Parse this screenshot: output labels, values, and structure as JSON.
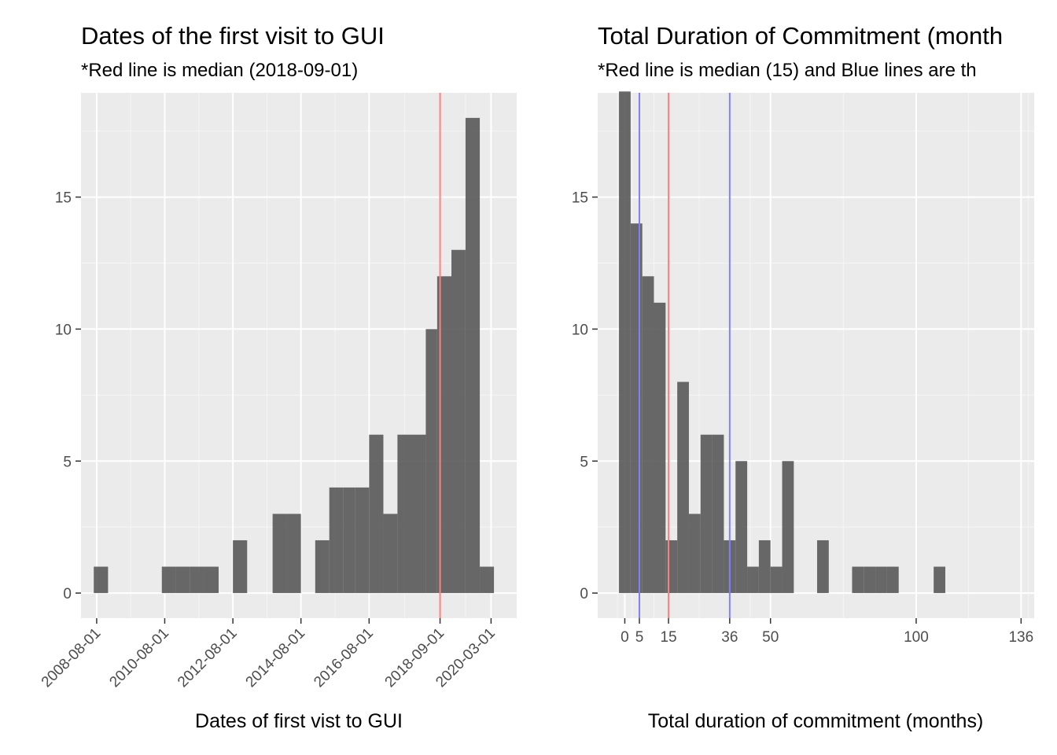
{
  "chart_data": [
    {
      "type": "bar",
      "title": "Dates of the first visit to GUI",
      "subtitle": "*Red line is median (2018-09-01)",
      "xlabel": "Dates of first vist to GUI",
      "ylabel": "",
      "x_tick_labels": [
        "2008-08-01",
        "2010-08-01",
        "2012-08-01",
        "2014-08-01",
        "2016-08-01",
        "2018-09-01",
        "2020-03-01"
      ],
      "y_ticks": [
        0,
        5,
        10,
        15
      ],
      "ylim": [
        0,
        19
      ],
      "grid": true,
      "bins": [
        {
          "start": "2008-07-01",
          "end": "2008-12-01",
          "count": 1
        },
        {
          "start": "2008-12-01",
          "end": "2009-05-01",
          "count": 0
        },
        {
          "start": "2009-05-01",
          "end": "2009-10-01",
          "count": 0
        },
        {
          "start": "2009-10-01",
          "end": "2010-03-01",
          "count": 0
        },
        {
          "start": "2010-03-01",
          "end": "2010-07-01",
          "count": 0
        },
        {
          "start": "2010-07-01",
          "end": "2010-12-01",
          "count": 1
        },
        {
          "start": "2010-12-01",
          "end": "2011-05-01",
          "count": 1
        },
        {
          "start": "2011-05-01",
          "end": "2011-10-01",
          "count": 1
        },
        {
          "start": "2011-10-01",
          "end": "2012-03-01",
          "count": 1
        },
        {
          "start": "2012-03-01",
          "end": "2012-08-01",
          "count": 0
        },
        {
          "start": "2012-08-01",
          "end": "2013-01-01",
          "count": 2
        },
        {
          "start": "2013-01-01",
          "end": "2013-06-01",
          "count": 0
        },
        {
          "start": "2013-06-01",
          "end": "2013-10-01",
          "count": 0
        },
        {
          "start": "2013-10-01",
          "end": "2014-03-01",
          "count": 3
        },
        {
          "start": "2014-03-01",
          "end": "2014-08-01",
          "count": 3
        },
        {
          "start": "2014-08-01",
          "end": "2015-01-01",
          "count": 0
        },
        {
          "start": "2015-01-01",
          "end": "2015-06-01",
          "count": 2
        },
        {
          "start": "2015-06-01",
          "end": "2015-11-01",
          "count": 4
        },
        {
          "start": "2015-11-01",
          "end": "2016-03-01",
          "count": 4
        },
        {
          "start": "2016-03-01",
          "end": "2016-08-01",
          "count": 4
        },
        {
          "start": "2016-08-01",
          "end": "2017-01-01",
          "count": 6
        },
        {
          "start": "2017-01-01",
          "end": "2017-06-01",
          "count": 3
        },
        {
          "start": "2017-06-01",
          "end": "2017-11-01",
          "count": 6
        },
        {
          "start": "2017-11-01",
          "end": "2018-04-01",
          "count": 6
        },
        {
          "start": "2018-04-01",
          "end": "2018-08-01",
          "count": 10
        },
        {
          "start": "2018-08-01",
          "end": "2019-01-01",
          "count": 12
        },
        {
          "start": "2019-01-01",
          "end": "2019-06-01",
          "count": 13
        },
        {
          "start": "2019-06-01",
          "end": "2019-11-01",
          "count": 18
        },
        {
          "start": "2019-11-01",
          "end": "2020-04-01",
          "count": 1
        }
      ],
      "reference_lines": [
        {
          "x": "2018-09-01",
          "color": "#ff8080",
          "label": "median"
        }
      ],
      "bar_color": "#595959"
    },
    {
      "type": "bar",
      "title": "Total Duration of Commitment (month",
      "subtitle": "*Red line is median (15) and Blue lines are th",
      "xlabel": "Total duration of commitment (months)",
      "ylabel": "",
      "x_ticks": [
        0,
        5,
        15,
        36,
        50,
        100,
        136
      ],
      "y_ticks": [
        0,
        5,
        10,
        15
      ],
      "ylim": [
        0,
        19
      ],
      "grid": true,
      "bin_width": 4,
      "bins": [
        {
          "start": -2,
          "end": 2,
          "count": 19
        },
        {
          "start": 2,
          "end": 6,
          "count": 14
        },
        {
          "start": 6,
          "end": 10,
          "count": 12
        },
        {
          "start": 10,
          "end": 14,
          "count": 11
        },
        {
          "start": 14,
          "end": 18,
          "count": 2
        },
        {
          "start": 18,
          "end": 22,
          "count": 8
        },
        {
          "start": 22,
          "end": 26,
          "count": 3
        },
        {
          "start": 26,
          "end": 30,
          "count": 6
        },
        {
          "start": 30,
          "end": 34,
          "count": 6
        },
        {
          "start": 34,
          "end": 38,
          "count": 2
        },
        {
          "start": 38,
          "end": 42,
          "count": 5
        },
        {
          "start": 42,
          "end": 46,
          "count": 1
        },
        {
          "start": 46,
          "end": 50,
          "count": 2
        },
        {
          "start": 50,
          "end": 54,
          "count": 1
        },
        {
          "start": 54,
          "end": 58,
          "count": 5
        },
        {
          "start": 58,
          "end": 62,
          "count": 0
        },
        {
          "start": 62,
          "end": 66,
          "count": 0
        },
        {
          "start": 66,
          "end": 70,
          "count": 2
        },
        {
          "start": 70,
          "end": 74,
          "count": 0
        },
        {
          "start": 74,
          "end": 78,
          "count": 0
        },
        {
          "start": 78,
          "end": 82,
          "count": 1
        },
        {
          "start": 82,
          "end": 86,
          "count": 1
        },
        {
          "start": 86,
          "end": 90,
          "count": 1
        },
        {
          "start": 90,
          "end": 94,
          "count": 1
        },
        {
          "start": 94,
          "end": 98,
          "count": 0
        },
        {
          "start": 98,
          "end": 102,
          "count": 0
        },
        {
          "start": 102,
          "end": 106,
          "count": 0
        },
        {
          "start": 106,
          "end": 110,
          "count": 1
        }
      ],
      "reference_lines": [
        {
          "x": 15,
          "color": "#ff8080",
          "label": "median"
        },
        {
          "x": 5,
          "color": "#8080ff",
          "label": "blue line"
        },
        {
          "x": 36,
          "color": "#8080ff",
          "label": "blue line"
        }
      ],
      "bar_color": "#595959"
    }
  ]
}
